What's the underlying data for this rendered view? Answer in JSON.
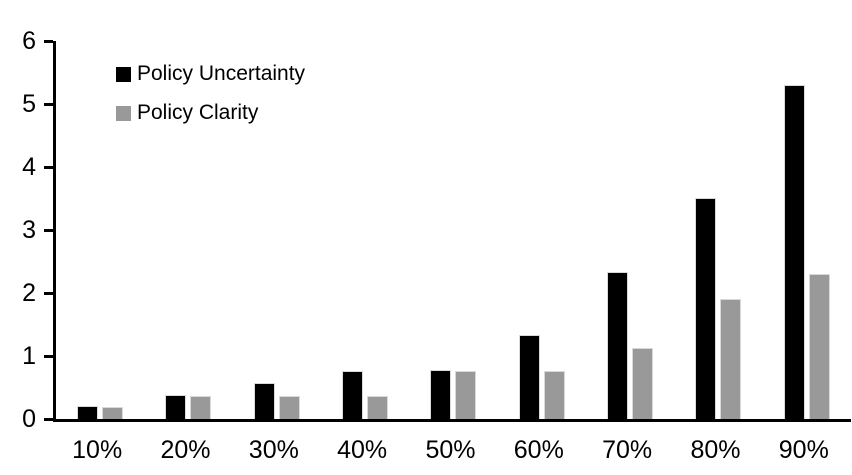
{
  "chart_data": {
    "type": "bar",
    "title": "",
    "xlabel": "",
    "ylabel": "",
    "categories": [
      "10%",
      "20%",
      "30%",
      "40%",
      "50%",
      "60%",
      "70%",
      "80%",
      "90%"
    ],
    "series": [
      {
        "name": "Policy Uncertainty",
        "color": "#000000",
        "values": [
          0.2,
          0.38,
          0.57,
          0.76,
          0.78,
          1.33,
          2.33,
          3.5,
          5.3
        ]
      },
      {
        "name": "Policy Clarity",
        "color": "#999999",
        "values": [
          0.19,
          0.37,
          0.37,
          0.37,
          0.76,
          0.76,
          1.13,
          1.9,
          2.3
        ]
      }
    ],
    "ylim": [
      0,
      6
    ],
    "yticks": [
      0,
      1,
      2,
      3,
      4,
      5,
      6
    ],
    "grid": false,
    "legend_position": "top-left",
    "colors": {
      "axis": "#000000",
      "bar_outline": "#d9d9d9",
      "text": "#000000",
      "background": "#ffffff"
    }
  }
}
